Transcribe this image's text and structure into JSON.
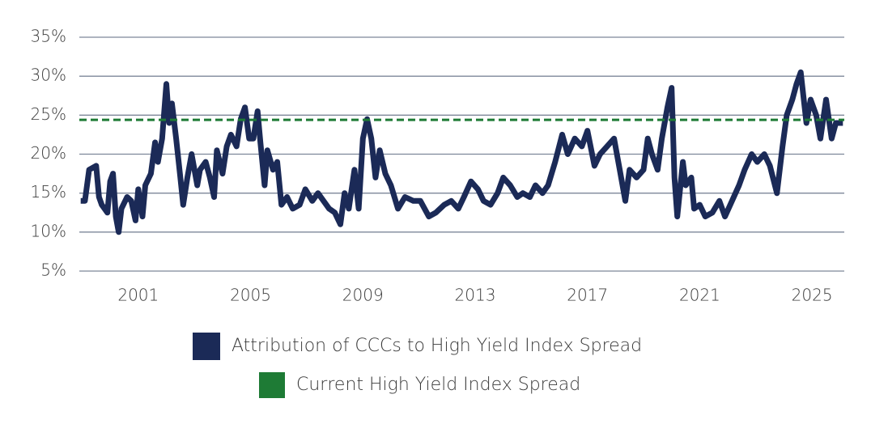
{
  "chart_data": {
    "type": "line",
    "x": [
      1998.95,
      1999.1,
      1999.25,
      1999.5,
      1999.6,
      1999.7,
      1999.9,
      2000.0,
      2000.1,
      2000.2,
      2000.3,
      2000.4,
      2000.6,
      2000.75,
      2000.9,
      2001.0,
      2001.15,
      2001.25,
      2001.45,
      2001.6,
      2001.7,
      2001.85,
      2002.0,
      2002.1,
      2002.2,
      2002.35,
      2002.5,
      2002.6,
      2002.75,
      2002.9,
      2003.1,
      2003.2,
      2003.4,
      2003.55,
      2003.7,
      2003.8,
      2004.0,
      2004.15,
      2004.3,
      2004.5,
      2004.65,
      2004.8,
      2004.95,
      2005.1,
      2005.25,
      2005.35,
      2005.5,
      2005.6,
      2005.8,
      2005.95,
      2006.1,
      2006.3,
      2006.5,
      2006.75,
      2006.95,
      2007.2,
      2007.4,
      2007.6,
      2007.8,
      2008.0,
      2008.2,
      2008.35,
      2008.5,
      2008.7,
      2008.85,
      2009.0,
      2009.15,
      2009.3,
      2009.45,
      2009.6,
      2009.8,
      2010.0,
      2010.25,
      2010.5,
      2010.8,
      2011.05,
      2011.35,
      2011.6,
      2011.9,
      2012.15,
      2012.4,
      2012.6,
      2012.85,
      2013.1,
      2013.3,
      2013.55,
      2013.8,
      2014.0,
      2014.25,
      2014.5,
      2014.7,
      2014.95,
      2015.15,
      2015.4,
      2015.6,
      2015.85,
      2016.1,
      2016.3,
      2016.55,
      2016.8,
      2017.0,
      2017.25,
      2017.45,
      2017.7,
      2017.95,
      2018.15,
      2018.35,
      2018.5,
      2018.75,
      2019.0,
      2019.15,
      2019.3,
      2019.5,
      2019.65,
      2019.85,
      2020.0,
      2020.1,
      2020.2,
      2020.4,
      2020.5,
      2020.7,
      2020.8,
      2021.0,
      2021.2,
      2021.45,
      2021.7,
      2021.9,
      2022.15,
      2022.4,
      2022.6,
      2022.85,
      2023.05,
      2023.3,
      2023.5,
      2023.75,
      2023.95,
      2024.1,
      2024.3,
      2024.45,
      2024.6,
      2024.8,
      2024.95,
      2025.15,
      2025.3,
      2025.5,
      2025.7,
      2025.85,
      2026.1
    ],
    "series": [
      {
        "name": "Attribution of CCCs to High Yield Index Spread",
        "color": "#1b2a57",
        "values": [
          14,
          14,
          18,
          18.5,
          14.5,
          13.5,
          12.5,
          16.5,
          17.5,
          12,
          10,
          13,
          14.5,
          14,
          11.5,
          15.5,
          12,
          16,
          17.5,
          21.5,
          19,
          22,
          29,
          24,
          26.5,
          22,
          17,
          13.5,
          17,
          20,
          16,
          18,
          19,
          17,
          14.5,
          20.5,
          17.5,
          21,
          22.5,
          21,
          24.5,
          26,
          22,
          22,
          25.5,
          21.5,
          16,
          20.5,
          18,
          19,
          13.5,
          14.5,
          13,
          13.5,
          15.5,
          14,
          15,
          14,
          13,
          12.5,
          11,
          15,
          13,
          18,
          13,
          22,
          24.5,
          22,
          17,
          20.5,
          17.5,
          16,
          13,
          14.5,
          14,
          14,
          12,
          12.5,
          13.5,
          14,
          13,
          14.5,
          16.5,
          15.5,
          14,
          13.5,
          15,
          17,
          16,
          14.5,
          15,
          14.5,
          16,
          15,
          16,
          19,
          22.5,
          20,
          22,
          21,
          23,
          18.5,
          20,
          21,
          22,
          18,
          14,
          18,
          17,
          18,
          22,
          20,
          18,
          22,
          26,
          28.5,
          17,
          12,
          19,
          16,
          17,
          13,
          13.5,
          12,
          12.5,
          14,
          12,
          14,
          16,
          18,
          20,
          19,
          20,
          18.5,
          15,
          21,
          25,
          27,
          29,
          30.5,
          24,
          27,
          25,
          22,
          27,
          22,
          24,
          24
        ]
      }
    ],
    "reference_line": {
      "name": "Current High Yield Index Spread",
      "color": "#1e7b35",
      "value": 24.4
    },
    "xlim": [
      1998.9,
      2026.15
    ],
    "xticks": [
      2001,
      2005,
      2009,
      2013,
      2017,
      2021,
      2025
    ],
    "ylim": [
      5,
      35
    ],
    "yticks": [
      {
        "value": 5,
        "label": "5%"
      },
      {
        "value": 10,
        "label": "10%"
      },
      {
        "value": 15,
        "label": "15%"
      },
      {
        "value": 20,
        "label": "20%"
      },
      {
        "value": 25,
        "label": "25%"
      },
      {
        "value": 30,
        "label": "30%"
      },
      {
        "value": 35,
        "label": "35%"
      }
    ],
    "grid": true
  }
}
